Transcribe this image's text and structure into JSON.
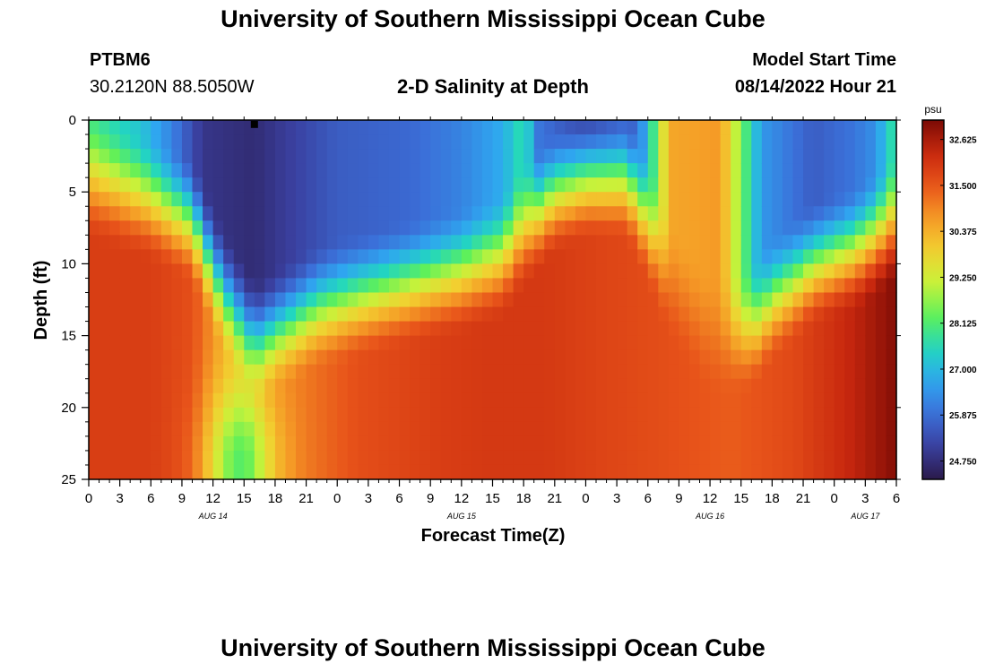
{
  "page": {
    "title_top": "University of Southern Mississippi Ocean Cube",
    "title_bottom": "University of Southern Mississippi Ocean Cube"
  },
  "station": {
    "id": "PTBM6",
    "coords": "30.2120N  88.5050W"
  },
  "model": {
    "start_label": "Model Start Time",
    "start_value": "08/14/2022 Hour 21"
  },
  "colors": {
    "ramp": [
      "#2a1a4a",
      "#3a3f9e",
      "#3b6fd8",
      "#2fa6f0",
      "#22d6c0",
      "#5ef05a",
      "#c8f23a",
      "#f2d030",
      "#f59a26",
      "#e8541a",
      "#c8280e",
      "#7a0a05"
    ]
  },
  "chart_data": {
    "type": "heatmap",
    "title": "2-D Salinity at Depth",
    "xlabel": "Forecast Time(Z)",
    "ylabel": "Depth (ft)",
    "x_ticks": [
      "0",
      "3",
      "6",
      "9",
      "12",
      "15",
      "18",
      "21",
      "0",
      "3",
      "6",
      "9",
      "12",
      "15",
      "18",
      "21",
      "0",
      "3",
      "6",
      "9",
      "12",
      "15",
      "18",
      "21",
      "0",
      "3",
      "6"
    ],
    "date_labels": [
      {
        "label": "AUG 14",
        "hour": 12
      },
      {
        "label": "AUG 15",
        "hour": 36
      },
      {
        "label": "AUG 16",
        "hour": 60
      },
      {
        "label": "AUG 17",
        "hour": 75
      }
    ],
    "y_ticks": [
      "0",
      "5",
      "10",
      "15",
      "20",
      "25"
    ],
    "xlim": [
      0,
      78
    ],
    "ylim": [
      0,
      25
    ],
    "colorbar": {
      "unit": "psu",
      "ticks": [
        "32.625",
        "31.500",
        "30.375",
        "29.250",
        "28.125",
        "27.000",
        "25.875",
        "24.750"
      ],
      "range": [
        24.3,
        33.1
      ]
    },
    "marker": {
      "hour": 16,
      "depth": 0.3
    }
  }
}
